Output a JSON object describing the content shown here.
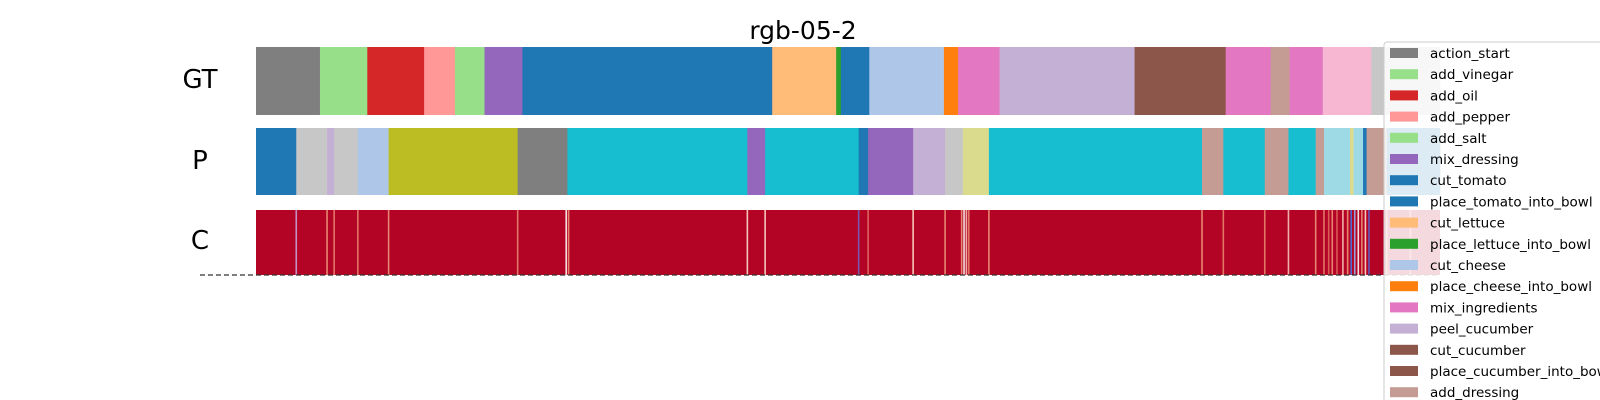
{
  "chart_data": {
    "type": "segmentation_timeline",
    "title": "rgb-05-2",
    "row_labels": [
      "GT",
      "P",
      "C"
    ],
    "x_range": [
      0,
      1
    ],
    "classes": [
      {
        "name": "action_start",
        "color": "#7f7f7f"
      },
      {
        "name": "add_vinegar",
        "color": "#98df8a"
      },
      {
        "name": "add_oil",
        "color": "#d62728"
      },
      {
        "name": "add_pepper",
        "color": "#ff9896"
      },
      {
        "name": "add_salt",
        "color": "#98df8a"
      },
      {
        "name": "mix_dressing",
        "color": "#9467bd"
      },
      {
        "name": "cut_tomato",
        "color": "#1f77b4"
      },
      {
        "name": "place_tomato_into_bowl",
        "color": "#1f77b4"
      },
      {
        "name": "cut_lettuce",
        "color": "#ffbb78"
      },
      {
        "name": "place_lettuce_into_bowl",
        "color": "#2ca02c"
      },
      {
        "name": "cut_cheese",
        "color": "#aec7e8"
      },
      {
        "name": "place_cheese_into_bowl",
        "color": "#ff7f0e"
      },
      {
        "name": "mix_ingredients",
        "color": "#e377c2"
      },
      {
        "name": "peel_cucumber",
        "color": "#c5b0d5"
      },
      {
        "name": "cut_cucumber",
        "color": "#8c564b"
      },
      {
        "name": "place_cucumber_into_bowl",
        "color": "#8c564b"
      },
      {
        "name": "add_dressing",
        "color": "#c49c94"
      }
    ],
    "gt_segments": [
      {
        "start": 0.0,
        "end": 0.054,
        "color": "#7f7f7f"
      },
      {
        "start": 0.054,
        "end": 0.094,
        "color": "#98df8a"
      },
      {
        "start": 0.094,
        "end": 0.142,
        "color": "#d62728"
      },
      {
        "start": 0.142,
        "end": 0.168,
        "color": "#ff9896"
      },
      {
        "start": 0.168,
        "end": 0.193,
        "color": "#98df8a"
      },
      {
        "start": 0.193,
        "end": 0.225,
        "color": "#9467bd"
      },
      {
        "start": 0.225,
        "end": 0.436,
        "color": "#1f77b4"
      },
      {
        "start": 0.436,
        "end": 0.49,
        "color": "#ffbb78"
      },
      {
        "start": 0.49,
        "end": 0.494,
        "color": "#2ca02c"
      },
      {
        "start": 0.494,
        "end": 0.518,
        "color": "#1f77b4"
      },
      {
        "start": 0.518,
        "end": 0.581,
        "color": "#aec7e8"
      },
      {
        "start": 0.581,
        "end": 0.593,
        "color": "#ff7f0e"
      },
      {
        "start": 0.593,
        "end": 0.628,
        "color": "#e377c2"
      },
      {
        "start": 0.628,
        "end": 0.742,
        "color": "#c5b0d5"
      },
      {
        "start": 0.742,
        "end": 0.819,
        "color": "#8c564b"
      },
      {
        "start": 0.819,
        "end": 0.857,
        "color": "#e377c2"
      },
      {
        "start": 0.857,
        "end": 0.873,
        "color": "#c49c94"
      },
      {
        "start": 0.873,
        "end": 0.901,
        "color": "#e377c2"
      },
      {
        "start": 0.901,
        "end": 0.942,
        "color": "#f7b6d2"
      },
      {
        "start": 0.942,
        "end": 1.0,
        "color": "#c7c7c7"
      }
    ],
    "p_segments": [
      {
        "start": 0.0,
        "end": 0.034,
        "color": "#1f77b4"
      },
      {
        "start": 0.034,
        "end": 0.06,
        "color": "#c7c7c7"
      },
      {
        "start": 0.06,
        "end": 0.066,
        "color": "#c5b0d5"
      },
      {
        "start": 0.066,
        "end": 0.086,
        "color": "#c7c7c7"
      },
      {
        "start": 0.086,
        "end": 0.112,
        "color": "#aec7e8"
      },
      {
        "start": 0.112,
        "end": 0.221,
        "color": "#bcbd22"
      },
      {
        "start": 0.221,
        "end": 0.263,
        "color": "#7f7f7f"
      },
      {
        "start": 0.263,
        "end": 0.415,
        "color": "#17becf"
      },
      {
        "start": 0.415,
        "end": 0.43,
        "color": "#9467bd"
      },
      {
        "start": 0.43,
        "end": 0.509,
        "color": "#17becf"
      },
      {
        "start": 0.509,
        "end": 0.517,
        "color": "#1f77b4"
      },
      {
        "start": 0.517,
        "end": 0.555,
        "color": "#9467bd"
      },
      {
        "start": 0.555,
        "end": 0.582,
        "color": "#c5b0d5"
      },
      {
        "start": 0.582,
        "end": 0.597,
        "color": "#c7c7c7"
      },
      {
        "start": 0.597,
        "end": 0.619,
        "color": "#dbdb8d"
      },
      {
        "start": 0.619,
        "end": 0.799,
        "color": "#17becf"
      },
      {
        "start": 0.799,
        "end": 0.817,
        "color": "#c49c94"
      },
      {
        "start": 0.817,
        "end": 0.852,
        "color": "#17becf"
      },
      {
        "start": 0.852,
        "end": 0.872,
        "color": "#c49c94"
      },
      {
        "start": 0.872,
        "end": 0.895,
        "color": "#17becf"
      },
      {
        "start": 0.895,
        "end": 0.902,
        "color": "#c49c94"
      },
      {
        "start": 0.902,
        "end": 0.924,
        "color": "#9edae5"
      },
      {
        "start": 0.924,
        "end": 0.927,
        "color": "#dbdb8d"
      },
      {
        "start": 0.927,
        "end": 0.935,
        "color": "#9edae5"
      },
      {
        "start": 0.935,
        "end": 0.938,
        "color": "#1f77b4"
      },
      {
        "start": 0.938,
        "end": 0.955,
        "color": "#c49c94"
      },
      {
        "start": 0.955,
        "end": 1.0,
        "color": "#1f77b4"
      }
    ],
    "c_base_color": "#b40426",
    "c_streaks": [
      {
        "x": 0.034,
        "color": "#c4a0d8",
        "alpha": 0.9
      },
      {
        "x": 0.06,
        "color": "#f4a582",
        "alpha": 0.8
      },
      {
        "x": 0.066,
        "color": "#f4a582",
        "alpha": 0.7
      },
      {
        "x": 0.086,
        "color": "#f4a582",
        "alpha": 0.7
      },
      {
        "x": 0.112,
        "color": "#f4a582",
        "alpha": 0.8
      },
      {
        "x": 0.221,
        "color": "#f4a582",
        "alpha": 0.7
      },
      {
        "x": 0.262,
        "color": "#f7f7f7",
        "alpha": 0.9
      },
      {
        "x": 0.264,
        "color": "#f4a582",
        "alpha": 0.8
      },
      {
        "x": 0.415,
        "color": "#fddbc7",
        "alpha": 0.9
      },
      {
        "x": 0.43,
        "color": "#fddbc7",
        "alpha": 0.9
      },
      {
        "x": 0.509,
        "color": "#6a6acd",
        "alpha": 0.8
      },
      {
        "x": 0.517,
        "color": "#f4a582",
        "alpha": 0.6
      },
      {
        "x": 0.555,
        "color": "#fddbc7",
        "alpha": 0.9
      },
      {
        "x": 0.582,
        "color": "#f4a582",
        "alpha": 0.8
      },
      {
        "x": 0.596,
        "color": "#f4a582",
        "alpha": 0.8
      },
      {
        "x": 0.598,
        "color": "#f7f7f7",
        "alpha": 0.9
      },
      {
        "x": 0.6,
        "color": "#fddbc7",
        "alpha": 0.8
      },
      {
        "x": 0.602,
        "color": "#f4a582",
        "alpha": 0.7
      },
      {
        "x": 0.619,
        "color": "#f4a582",
        "alpha": 0.8
      },
      {
        "x": 0.799,
        "color": "#f4a582",
        "alpha": 0.8
      },
      {
        "x": 0.817,
        "color": "#f4a582",
        "alpha": 0.7
      },
      {
        "x": 0.852,
        "color": "#f4a582",
        "alpha": 0.7
      },
      {
        "x": 0.872,
        "color": "#fddbc7",
        "alpha": 0.8
      },
      {
        "x": 0.895,
        "color": "#f4a582",
        "alpha": 0.8
      },
      {
        "x": 0.902,
        "color": "#f4a582",
        "alpha": 0.7
      },
      {
        "x": 0.906,
        "color": "#e8816a",
        "alpha": 0.7
      },
      {
        "x": 0.909,
        "color": "#f4a582",
        "alpha": 0.8
      },
      {
        "x": 0.913,
        "color": "#e8816a",
        "alpha": 0.7
      },
      {
        "x": 0.918,
        "color": "#fddbc7",
        "alpha": 0.8
      },
      {
        "x": 0.922,
        "color": "#f4a582",
        "alpha": 0.8
      },
      {
        "x": 0.925,
        "color": "#4a6fe3",
        "alpha": 0.95
      },
      {
        "x": 0.928,
        "color": "#92b5f0",
        "alpha": 0.9
      },
      {
        "x": 0.931,
        "color": "#f7f7f7",
        "alpha": 0.9
      },
      {
        "x": 0.934,
        "color": "#f4a582",
        "alpha": 0.8
      },
      {
        "x": 0.937,
        "color": "#fddbc7",
        "alpha": 0.9
      },
      {
        "x": 0.94,
        "color": "#4a6fe3",
        "alpha": 0.8
      },
      {
        "x": 0.955,
        "color": "#f4a582",
        "alpha": 0.8
      },
      {
        "x": 0.975,
        "color": "#f4a582",
        "alpha": 0.7
      }
    ]
  }
}
